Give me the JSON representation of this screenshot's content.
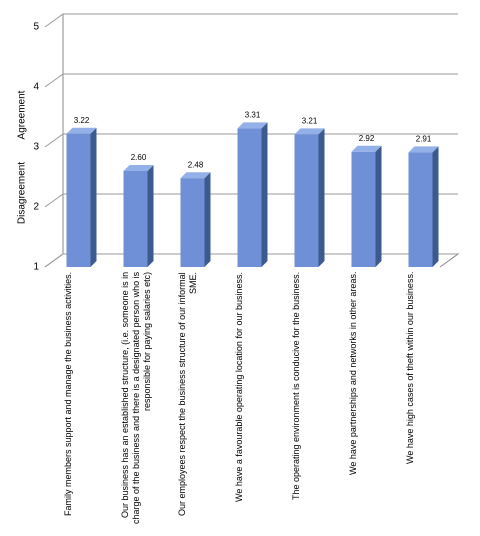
{
  "chart_data": {
    "type": "bar3d",
    "y_label_low": "Disagreement",
    "y_label_high": "Agreement",
    "categories": [
      "Family members support and manage the business activities.",
      "Our business has an established structure, (i.e. someone is in charge of the business and there is a designated person who is responsible for paying salaries etc)",
      "Our employees respect the business structure of our informal SME.",
      "We have a favourable operating location for our business.",
      "The operating environment is conducive for the business.",
      "We have partnerships and networks in other areas.",
      "We have high cases of theft within our business."
    ],
    "values": [
      3.22,
      2.6,
      2.48,
      3.31,
      3.21,
      2.92,
      2.91
    ],
    "value_labels": [
      "3.22",
      "2.60",
      "2.48",
      "3.31",
      "3.21",
      "2.92",
      "2.91"
    ],
    "color": "#6f8fd6",
    "ylim": [
      1,
      5
    ],
    "yticks": [
      1,
      2,
      3,
      4,
      5
    ],
    "grid": true
  }
}
